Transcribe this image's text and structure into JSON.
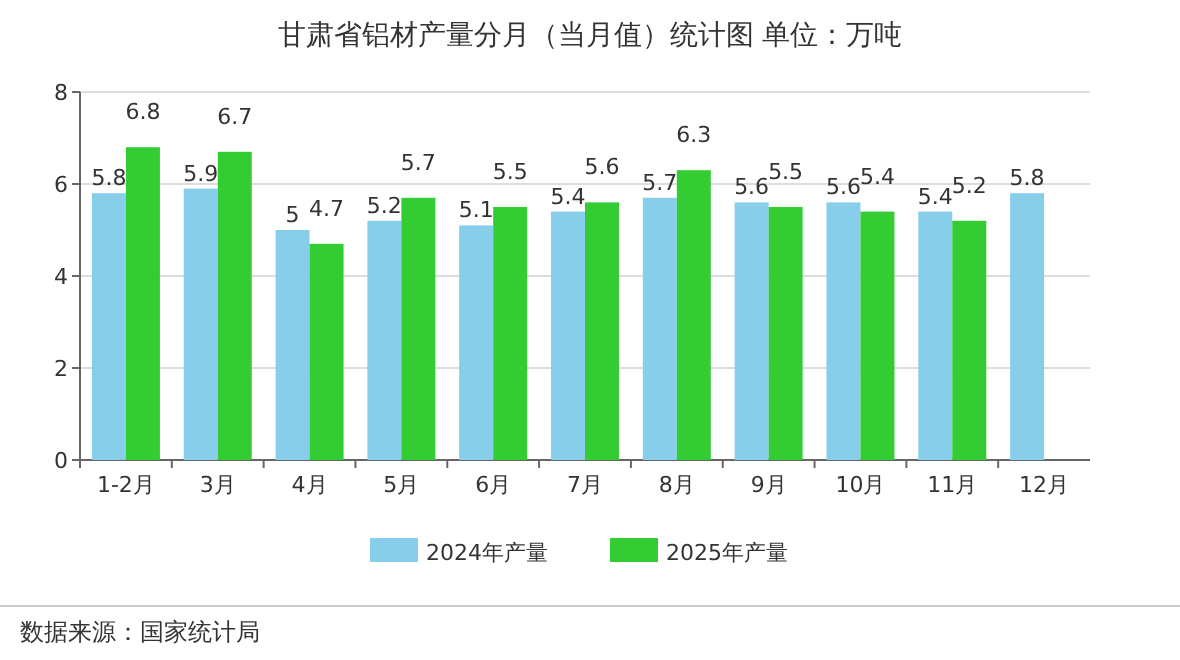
{
  "chart_data": {
    "type": "bar",
    "title": "甘肃省铝材产量分月（当月值）统计图 单位：万吨",
    "categories": [
      "1-2月",
      "3月",
      "4月",
      "5月",
      "6月",
      "7月",
      "8月",
      "9月",
      "10月",
      "11月",
      "12月"
    ],
    "series": [
      {
        "name": "2024年产量",
        "color": "#87ceeb",
        "values": [
          5.8,
          5.9,
          5,
          5.2,
          5.1,
          5.4,
          5.7,
          5.6,
          5.6,
          5.4,
          5.8
        ]
      },
      {
        "name": "2025年产量",
        "color": "#33cc33",
        "values": [
          6.8,
          6.7,
          4.7,
          5.7,
          5.5,
          5.6,
          6.3,
          5.5,
          5.4,
          5.2,
          null
        ]
      }
    ],
    "ylim": [
      0,
      8
    ],
    "yticks": [
      0,
      2,
      4,
      6,
      8
    ],
    "grid": "y",
    "legend": "bottom",
    "data_labels": true,
    "annotations": [
      "数据来源：国家统计局"
    ]
  }
}
